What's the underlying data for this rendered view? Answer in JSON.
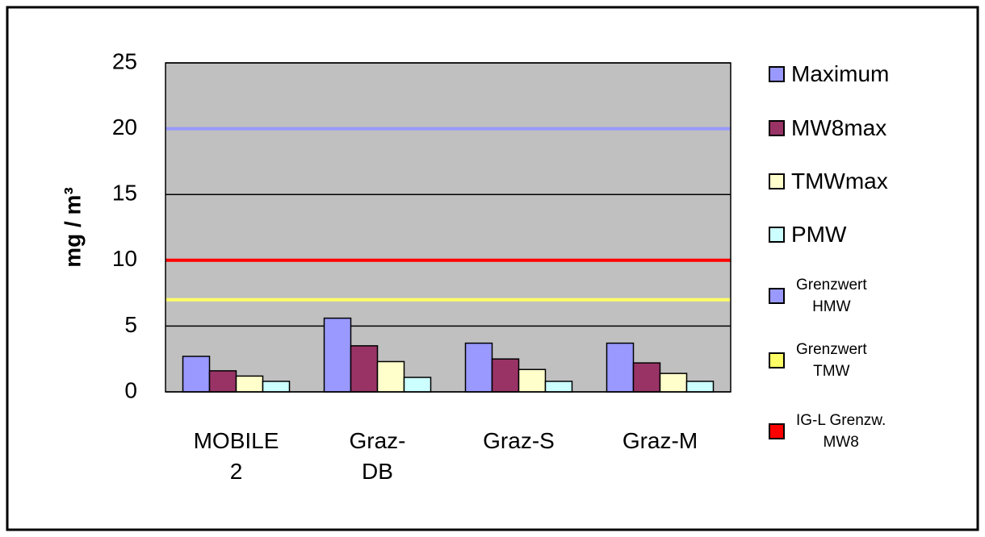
{
  "chart_data": {
    "type": "bar",
    "y_label": "mg / m³",
    "categories": [
      "MOBILE\n2",
      "Graz-\nDB",
      "Graz-S",
      "Graz-M"
    ],
    "series": [
      {
        "name": "Maximum",
        "color": "#9999ff",
        "values": [
          2.7,
          5.6,
          3.7,
          3.7
        ]
      },
      {
        "name": "MW8max",
        "color": "#993366",
        "values": [
          1.6,
          3.5,
          2.5,
          2.2
        ]
      },
      {
        "name": "TMWmax",
        "color": "#ffffcc",
        "values": [
          1.2,
          2.3,
          1.7,
          1.4
        ]
      },
      {
        "name": "PMW",
        "color": "#ccffff",
        "values": [
          0.8,
          1.1,
          0.8,
          0.8
        ]
      }
    ],
    "reference_lines": [
      {
        "name": "Grenzwert\nHMW",
        "color": "#9999ff",
        "value": 20
      },
      {
        "name": "Grenzwert\nTMW",
        "color": "#ffff66",
        "value": 7
      },
      {
        "name": "IG-L Grenzw.\nMW8",
        "color": "#ff0000",
        "value": 10
      }
    ],
    "ylim": [
      0,
      25
    ],
    "yticks": [
      0,
      5,
      10,
      15,
      20,
      25
    ],
    "grid": true,
    "plot_background": "#c0c0c0"
  }
}
